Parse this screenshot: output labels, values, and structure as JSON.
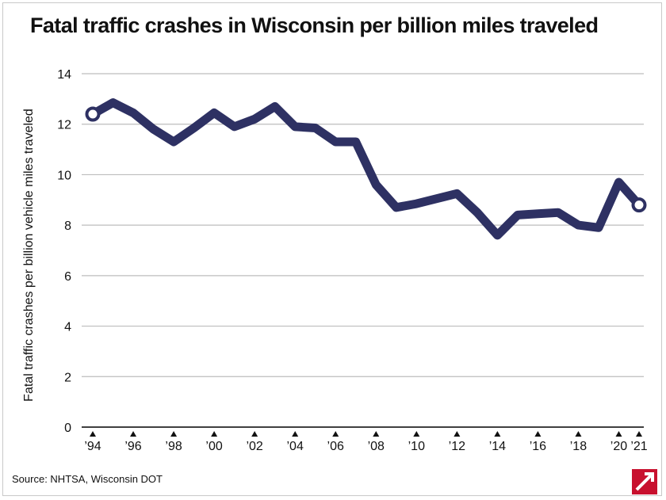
{
  "title": "Fatal traffic crashes in Wisconsin per billion miles traveled",
  "source": "Source: NHTSA, Wisconsin DOT",
  "chart_data": {
    "type": "line",
    "title": "Fatal traffic crashes in Wisconsin per billion miles traveled",
    "xlabel": "",
    "ylabel": "Fatal traffic crashes per billion vehicle miles traveled",
    "ylim": [
      0,
      14
    ],
    "yticks": [
      0,
      2,
      4,
      6,
      8,
      10,
      12,
      14
    ],
    "grid": true,
    "legend": "none",
    "xtick_labels": [
      {
        "x": 1994,
        "label": "’94"
      },
      {
        "x": 1996,
        "label": "’96"
      },
      {
        "x": 1998,
        "label": "’98"
      },
      {
        "x": 2000,
        "label": "’00"
      },
      {
        "x": 2002,
        "label": "’02"
      },
      {
        "x": 2004,
        "label": "’04"
      },
      {
        "x": 2006,
        "label": "’06"
      },
      {
        "x": 2008,
        "label": "’08"
      },
      {
        "x": 2010,
        "label": "’10"
      },
      {
        "x": 2012,
        "label": "’12"
      },
      {
        "x": 2014,
        "label": "’14"
      },
      {
        "x": 2016,
        "label": "’16"
      },
      {
        "x": 2018,
        "label": "’18"
      },
      {
        "x": 2020,
        "label": "’20"
      },
      {
        "x": 2021,
        "label": "’21"
      }
    ],
    "series": [
      {
        "color": "#2e3163",
        "x": [
          1994,
          1995,
          1996,
          1997,
          1998,
          1999,
          2000,
          2001,
          2002,
          2003,
          2004,
          2005,
          2006,
          2007,
          2008,
          2009,
          2010,
          2011,
          2012,
          2013,
          2014,
          2015,
          2016,
          2017,
          2018,
          2019,
          2020,
          2021
        ],
        "y": [
          12.4,
          12.85,
          12.45,
          11.8,
          11.3,
          11.85,
          12.45,
          11.9,
          12.2,
          12.7,
          11.9,
          11.85,
          11.3,
          11.3,
          9.6,
          8.7,
          8.85,
          9.05,
          9.25,
          8.5,
          7.6,
          8.4,
          8.45,
          8.5,
          8.0,
          7.9,
          9.7,
          8.8
        ]
      }
    ],
    "grid_color": "#bdbdbd",
    "axis_color": "#000000"
  }
}
